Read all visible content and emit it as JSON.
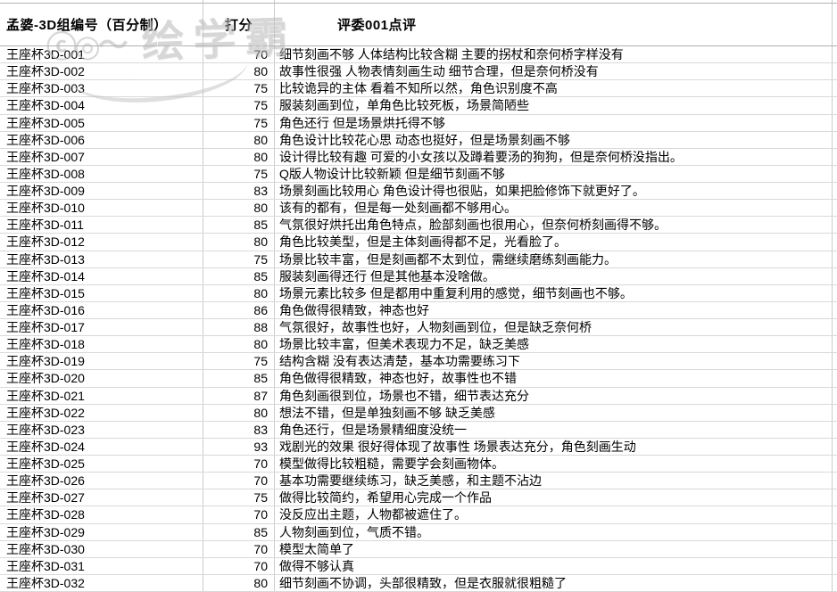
{
  "table": {
    "columns": [
      {
        "label": "孟婆-3D组编号（百分制）"
      },
      {
        "label": "打分"
      },
      {
        "label": "评委001点评"
      }
    ],
    "rows": [
      {
        "id": "王座杯3D-001",
        "score": "70",
        "comment": "细节刻画不够 人体结构比较含糊 主要的拐杖和奈何桥字样没有"
      },
      {
        "id": "王座杯3D-002",
        "score": "80",
        "comment": "故事性很强 人物表情刻画生动 细节合理，但是奈何桥没有"
      },
      {
        "id": "王座杯3D-003",
        "score": "75",
        "comment": "比较诡异的主体 看着不知所以然，角色识别度不高"
      },
      {
        "id": "王座杯3D-004",
        "score": "75",
        "comment": "服装刻画到位，单角色比较死板，场景简陋些"
      },
      {
        "id": "王座杯3D-005",
        "score": "75",
        "comment": "角色还行 但是场景烘托得不够"
      },
      {
        "id": "王座杯3D-006",
        "score": "80",
        "comment": "角色设计比较花心思 动态也挺好，但是场景刻画不够"
      },
      {
        "id": "王座杯3D-007",
        "score": "80",
        "comment": "设计得比较有趣 可爱的小女孩以及蹲着要汤的狗狗，但是奈何桥没指出。"
      },
      {
        "id": "王座杯3D-008",
        "score": "75",
        "comment": "Q版人物设计比较新颖 但是细节刻画不够"
      },
      {
        "id": "王座杯3D-009",
        "score": "83",
        "comment": "场景刻画比较用心 角色设计得也很贴，如果把脸修饰下就更好了。"
      },
      {
        "id": "王座杯3D-010",
        "score": "80",
        "comment": "该有的都有，但是每一处刻画都不够用心。"
      },
      {
        "id": "王座杯3D-011",
        "score": "85",
        "comment": "气氛很好烘托出角色特点，脸部刻画也很用心，但奈何桥刻画得不够。"
      },
      {
        "id": "王座杯3D-012",
        "score": "80",
        "comment": "角色比较美型，但是主体刻画得都不足，光看脸了。"
      },
      {
        "id": "王座杯3D-013",
        "score": "75",
        "comment": "场景比较丰富，但是刻画都不太到位，需继续磨练刻画能力。"
      },
      {
        "id": "王座杯3D-014",
        "score": "85",
        "comment": "服装刻画得还行 但是其他基本没啥做。"
      },
      {
        "id": "王座杯3D-015",
        "score": "80",
        "comment": "场景元素比较多 但是都用中重复利用的感觉，细节刻画也不够。"
      },
      {
        "id": "王座杯3D-016",
        "score": "86",
        "comment": "角色做得很精致，神态也好"
      },
      {
        "id": "王座杯3D-017",
        "score": "88",
        "comment": "气氛很好，故事性也好，人物刻画到位，但是缺乏奈何桥"
      },
      {
        "id": "王座杯3D-018",
        "score": "80",
        "comment": "场景比较丰富，但美术表现力不足，缺乏美感"
      },
      {
        "id": "王座杯3D-019",
        "score": "75",
        "comment": "结构含糊 没有表达清楚，基本功需要练习下"
      },
      {
        "id": "王座杯3D-020",
        "score": "85",
        "comment": "角色做得很精致，神态也好，故事性也不错"
      },
      {
        "id": "王座杯3D-021",
        "score": "87",
        "comment": "角色刻画很到位，场景也不错，细节表达充分"
      },
      {
        "id": "王座杯3D-022",
        "score": "80",
        "comment": "想法不错，但是单独刻画不够 缺乏美感"
      },
      {
        "id": "王座杯3D-023",
        "score": "83",
        "comment": "角色还行，但是场景精细度没统一"
      },
      {
        "id": "王座杯3D-024",
        "score": "93",
        "comment": "戏剧光的效果 很好得体现了故事性 场景表达充分，角色刻画生动"
      },
      {
        "id": "王座杯3D-025",
        "score": "70",
        "comment": "模型做得比较粗糙，需要学会刻画物体。"
      },
      {
        "id": "王座杯3D-026",
        "score": "70",
        "comment": "基本功需要继续练习，缺乏美感，和主题不沾边"
      },
      {
        "id": "王座杯3D-027",
        "score": "75",
        "comment": "做得比较简约，希望用心完成一个作品"
      },
      {
        "id": "王座杯3D-028",
        "score": "70",
        "comment": "没反应出主题，人物都被遮住了。"
      },
      {
        "id": "王座杯3D-029",
        "score": "85",
        "comment": "人物刻画到位，气质不错。"
      },
      {
        "id": "王座杯3D-030",
        "score": "70",
        "comment": "模型太简单了"
      },
      {
        "id": "王座杯3D-031",
        "score": "70",
        "comment": "做得不够认真"
      },
      {
        "id": "王座杯3D-032",
        "score": "80",
        "comment": "细节刻画不协调，头部很精致，但是衣服就很粗糙了"
      }
    ]
  },
  "watermark": {
    "logo_glyph": "ⓒ◎～",
    "text": "绘学霸"
  },
  "colors": {
    "gridline": "#d9d9d9",
    "column_line": "#cccccc",
    "header_border": "#b0b0b0",
    "text": "#000000",
    "watermark": "#b8b8b8",
    "background": "#ffffff"
  }
}
